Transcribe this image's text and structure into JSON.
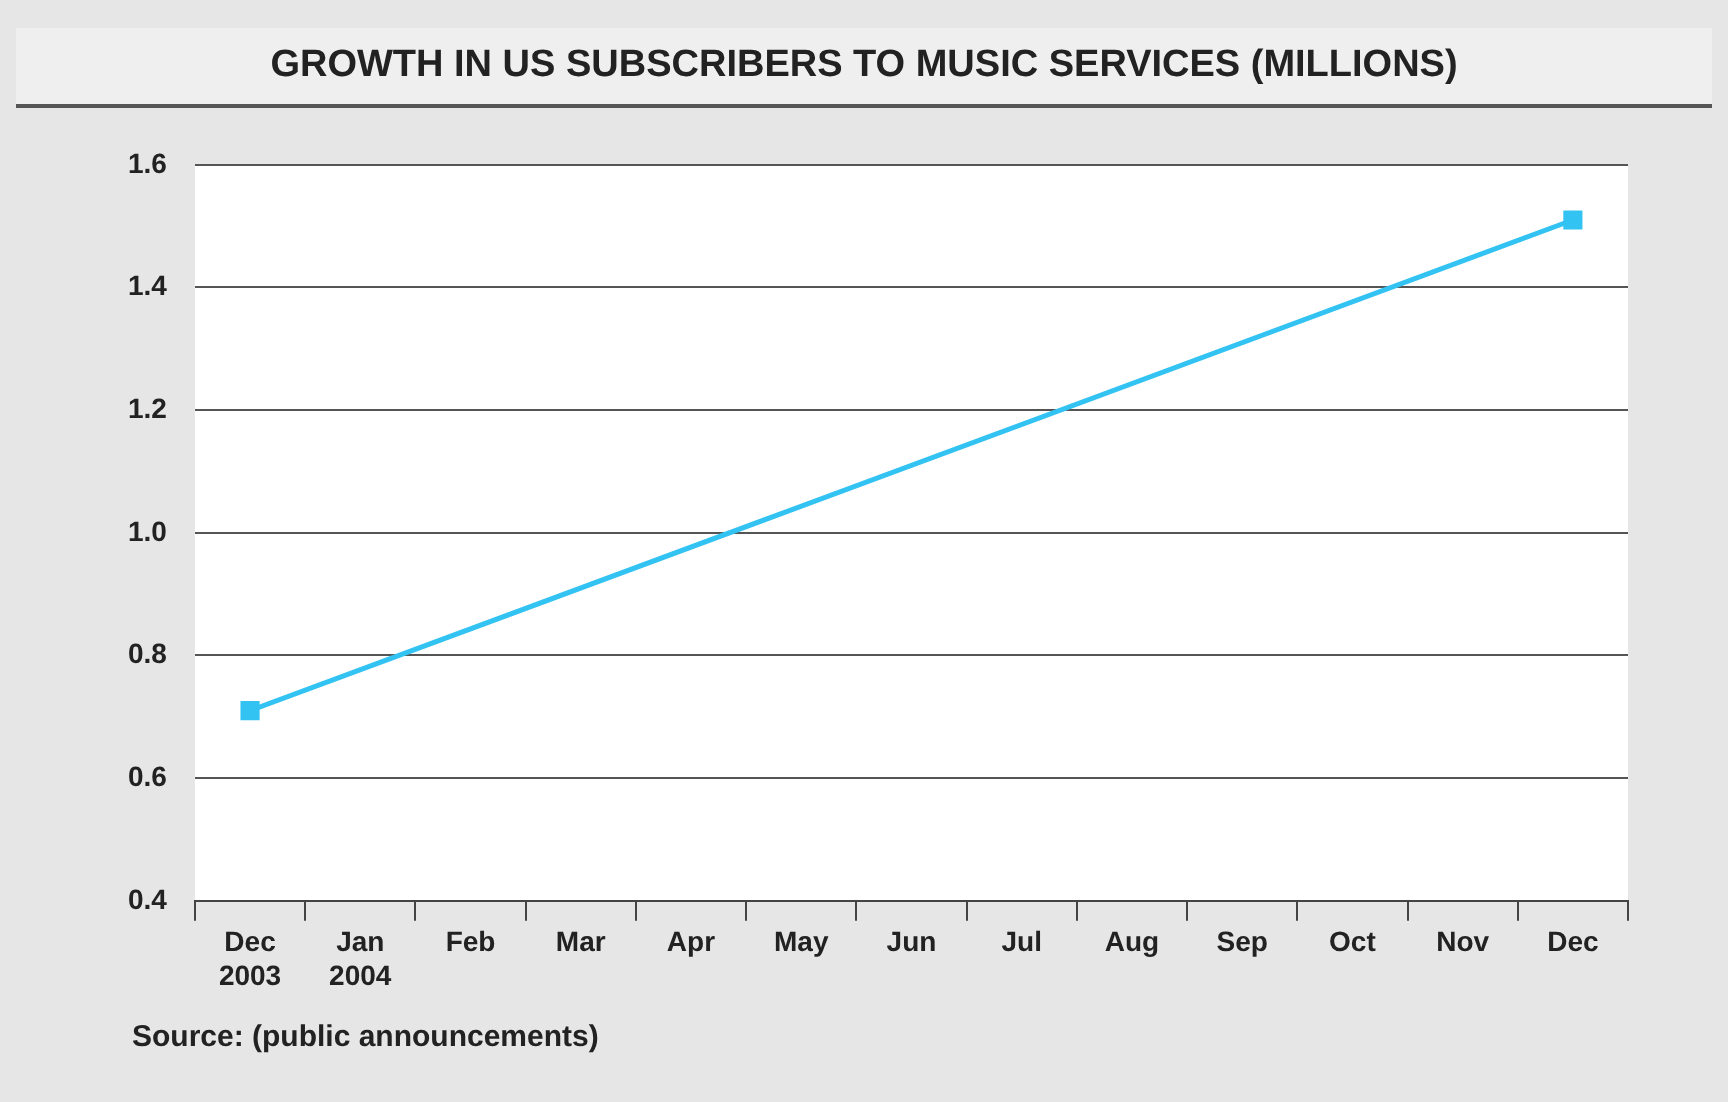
{
  "chart_data": {
    "type": "line",
    "title": "GROWTH IN US SUBSCRIBERS TO MUSIC SERVICES (MILLIONS)",
    "categories": [
      "Dec 2003",
      "Jan 2004",
      "Feb",
      "Mar",
      "Apr",
      "May",
      "Jun",
      "Jul",
      "Aug",
      "Sep",
      "Oct",
      "Nov",
      "Dec"
    ],
    "series": [
      {
        "color": "#33c3f2",
        "values": [
          0.71,
          null,
          null,
          null,
          null,
          null,
          null,
          null,
          null,
          null,
          null,
          null,
          1.51
        ]
      }
    ],
    "ylim": [
      0.4,
      1.6
    ],
    "yticks": [
      0.4,
      0.6,
      0.8,
      {
        "value": 1,
        "label": "1.0"
      },
      1.2,
      1.4,
      1.6
    ],
    "grid": "y",
    "legend": false,
    "marker": "square",
    "line_style": "solid",
    "annotations": [
      "Source: (public announcements)"
    ]
  }
}
